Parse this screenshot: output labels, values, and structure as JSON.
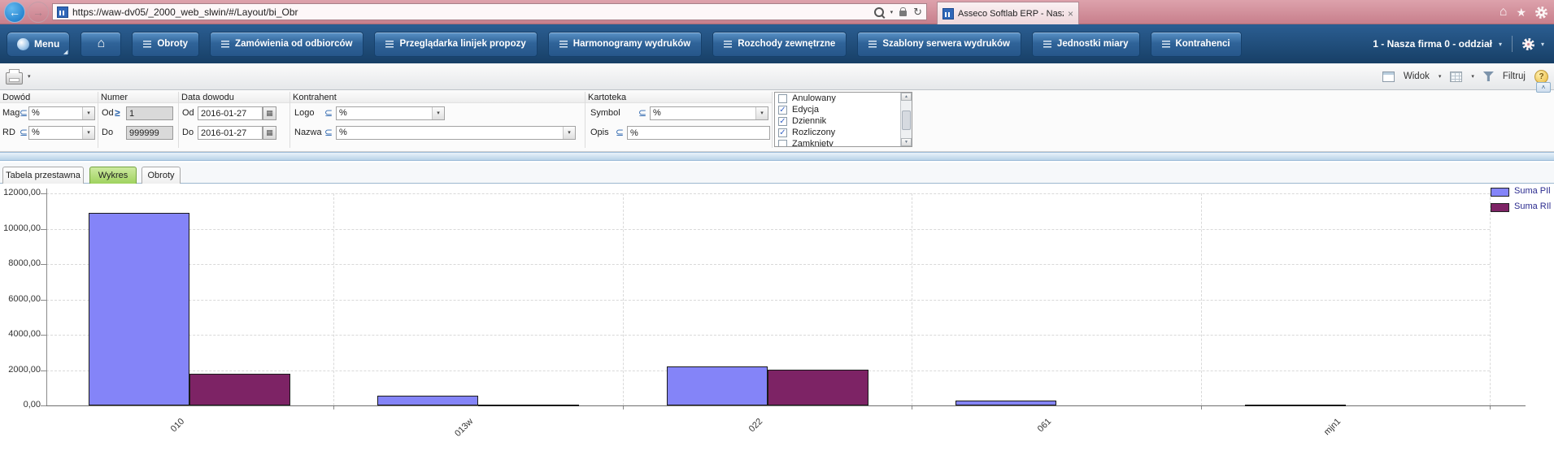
{
  "browser": {
    "url": "https://waw-dv05/_2000_web_slwin/#/Layout/bi_Obr",
    "tab_title": "Asseco Softlab ERP - Nasza ..."
  },
  "icons": {
    "back": "←",
    "forward": "→",
    "caret": "▾",
    "refresh": "↻",
    "close": "×",
    "home": "⌂",
    "star": "★",
    "check": "✓",
    "calendar": "▦",
    "collapse": "˄",
    "help": "?",
    "menu_corner": "◢",
    "scroll_up": "▲",
    "scroll_down": "▼"
  },
  "menu_bar": {
    "menu_label": "Menu",
    "nav_items": [
      "Obroty",
      "Zamówienia od odbiorców",
      "Przeglądarka linijek propozy",
      "Harmonogramy wydruków",
      "Rozchody zewnętrzne",
      "Szablony serwera wydruków",
      "Jednostki miary",
      "Kontrahenci"
    ],
    "company_selector": "1 - Nasza firma 0 - oddział"
  },
  "toolbar": {
    "view_label": "Widok",
    "filter_label": "Filtruj"
  },
  "filters": {
    "dowod": {
      "header": "Dowód",
      "rows": [
        {
          "label": "Mag",
          "op": "⊆",
          "value": "%"
        },
        {
          "label": "RD",
          "op": "⊆",
          "value": "%"
        }
      ]
    },
    "numer": {
      "header": "Numer",
      "rows": [
        {
          "label": "Od",
          "op": "≥",
          "value": "1"
        },
        {
          "label": "Do",
          "op": "",
          "value": "999999"
        }
      ]
    },
    "data_dowodu": {
      "header": "Data dowodu",
      "rows": [
        {
          "label": "Od",
          "value": "2016-01-27"
        },
        {
          "label": "Do",
          "value": "2016-01-27"
        }
      ]
    },
    "kontrahent": {
      "header": "Kontrahent",
      "rows": [
        {
          "label": "Logo",
          "op": "⊆",
          "value": "%"
        },
        {
          "label": "Nazwa",
          "op": "⊆",
          "value": "%"
        }
      ]
    },
    "kartoteka": {
      "header": "Kartoteka",
      "rows": [
        {
          "label": "Symbol",
          "op": "⊆",
          "value": "%"
        },
        {
          "label": "Opis",
          "op": "⊆",
          "value": "%"
        }
      ]
    },
    "status_list": [
      {
        "label": "Anulowany",
        "checked": false
      },
      {
        "label": "Edycja",
        "checked": true
      },
      {
        "label": "Dziennik",
        "checked": true
      },
      {
        "label": "Rozliczony",
        "checked": true
      },
      {
        "label": "Zamknięty",
        "checked": false
      }
    ]
  },
  "tabs": [
    "Tabela przestawna",
    "Wykres",
    "Obroty"
  ],
  "active_tab": "Wykres",
  "chart_data": {
    "type": "bar",
    "categories": [
      "010",
      "013w",
      "022",
      "061",
      "mjn1"
    ],
    "series": [
      {
        "name": "Suma PIl",
        "color": "#8484f8",
        "values": [
          10900,
          550,
          2200,
          260,
          20
        ]
      },
      {
        "name": "Suma RIl",
        "color": "#7d2365",
        "values": [
          1800,
          15,
          2010,
          0,
          0
        ]
      }
    ],
    "ylim": [
      0,
      12000
    ],
    "y_ticks": [
      {
        "value": 12000,
        "label": "12000,00"
      },
      {
        "value": 10000,
        "label": "10000,00"
      },
      {
        "value": 8000,
        "label": "8000,00"
      },
      {
        "value": 6000,
        "label": "6000,00"
      },
      {
        "value": 4000,
        "label": "4000,00"
      },
      {
        "value": 2000,
        "label": "2000,00"
      },
      {
        "value": 0,
        "label": "0,00"
      }
    ],
    "grid": true,
    "legend_position": "top-right",
    "bar_border_color": "#1a1a1a"
  }
}
